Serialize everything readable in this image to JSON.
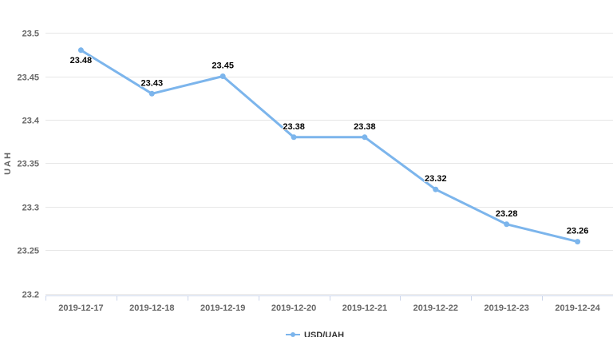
{
  "chart_data": {
    "type": "line",
    "title": "",
    "ylabel": "UAH",
    "xlabel": "",
    "categories": [
      "2019-12-17",
      "2019-12-18",
      "2019-12-19",
      "2019-12-20",
      "2019-12-21",
      "2019-12-22",
      "2019-12-23",
      "2019-12-24"
    ],
    "series": [
      {
        "name": "USD/UAH",
        "values": [
          23.48,
          23.43,
          23.45,
          23.38,
          23.38,
          23.32,
          23.28,
          23.26
        ]
      }
    ],
    "point_labels": [
      "23.48",
      "23.43",
      "23.45",
      "23.38",
      "23.38",
      "23.32",
      "23.28",
      "23.26"
    ],
    "ylim": [
      23.2,
      23.5
    ],
    "yticks": [
      23.2,
      23.25,
      23.3,
      23.35,
      23.4,
      23.45,
      23.5
    ],
    "ytick_labels": [
      "23.2",
      "23.25",
      "23.3",
      "23.35",
      "23.4",
      "23.45",
      "23.5"
    ],
    "grid": true,
    "legend": {
      "position": "bottom-center",
      "label": "USD/UAH"
    },
    "colors": {
      "line": "#7cb5ec",
      "marker": "#7cb5ec",
      "grid": "#e6e6e6",
      "axis": "#ccd6eb",
      "axis_label": "#666666",
      "data_label": "#000000",
      "legend_label": "#333333",
      "background": "#ffffff"
    }
  }
}
